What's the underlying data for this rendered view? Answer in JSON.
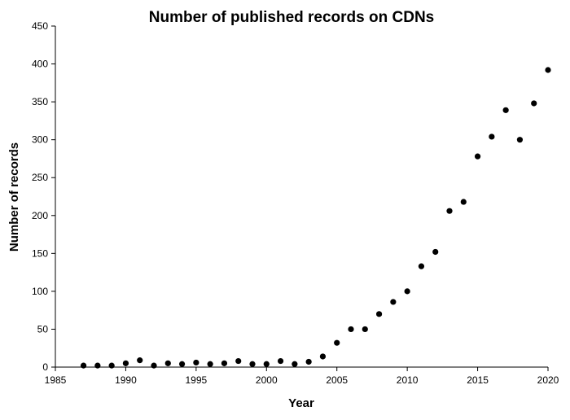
{
  "chart_data": {
    "type": "scatter",
    "title": "Number of published records on CDNs",
    "xlabel": "Year",
    "ylabel": "Number of records",
    "xlim": [
      1985,
      2020
    ],
    "ylim": [
      0,
      450
    ],
    "xticks": [
      "1985",
      "1990",
      "1995",
      "2000",
      "2005",
      "2010",
      "2015",
      "2020"
    ],
    "yticks": [
      "0",
      "50",
      "100",
      "150",
      "200",
      "250",
      "300",
      "350",
      "400",
      "450"
    ],
    "grid": false,
    "legend": "none",
    "marker_color": "#000000",
    "series": [
      {
        "points": [
          {
            "x": 1987,
            "y": 2
          },
          {
            "x": 1988,
            "y": 2
          },
          {
            "x": 1989,
            "y": 2
          },
          {
            "x": 1990,
            "y": 5
          },
          {
            "x": 1991,
            "y": 9
          },
          {
            "x": 1992,
            "y": 2
          },
          {
            "x": 1993,
            "y": 5
          },
          {
            "x": 1994,
            "y": 4
          },
          {
            "x": 1995,
            "y": 6
          },
          {
            "x": 1996,
            "y": 4
          },
          {
            "x": 1997,
            "y": 5
          },
          {
            "x": 1998,
            "y": 8
          },
          {
            "x": 1999,
            "y": 4
          },
          {
            "x": 2000,
            "y": 4
          },
          {
            "x": 2001,
            "y": 8
          },
          {
            "x": 2002,
            "y": 4
          },
          {
            "x": 2003,
            "y": 7
          },
          {
            "x": 2004,
            "y": 14
          },
          {
            "x": 2005,
            "y": 32
          },
          {
            "x": 2006,
            "y": 50
          },
          {
            "x": 2007,
            "y": 50
          },
          {
            "x": 2008,
            "y": 70
          },
          {
            "x": 2009,
            "y": 86
          },
          {
            "x": 2010,
            "y": 100
          },
          {
            "x": 2011,
            "y": 133
          },
          {
            "x": 2012,
            "y": 152
          },
          {
            "x": 2013,
            "y": 206
          },
          {
            "x": 2014,
            "y": 218
          },
          {
            "x": 2015,
            "y": 278
          },
          {
            "x": 2016,
            "y": 304
          },
          {
            "x": 2017,
            "y": 339
          },
          {
            "x": 2018,
            "y": 300
          },
          {
            "x": 2019,
            "y": 348
          },
          {
            "x": 2020,
            "y": 392
          }
        ]
      }
    ]
  }
}
